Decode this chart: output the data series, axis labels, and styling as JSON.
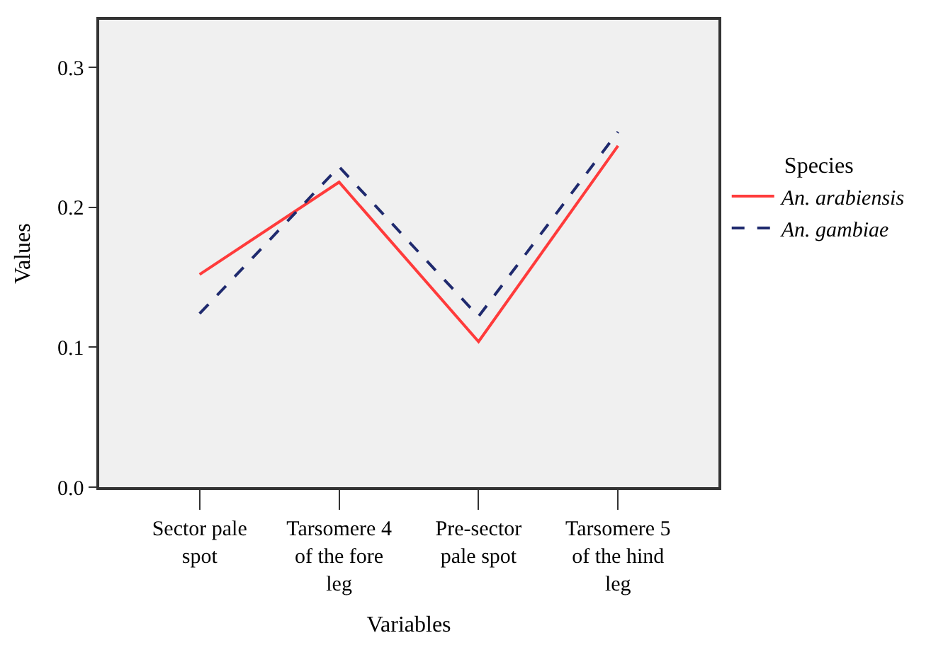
{
  "chart_data": {
    "type": "line",
    "xlabel": "Variables",
    "ylabel": "Values",
    "legend_title": "Species",
    "categories": [
      "Sector pale spot",
      "Tarsomere 4 of the fore leg",
      "Pre-sector pale spot",
      "Tarsomere 5 of the hind leg"
    ],
    "series": [
      {
        "name": "An. arabiensis",
        "color": "#ff3b3b",
        "line_style": "solid",
        "values": [
          0.152,
          0.218,
          0.104,
          0.244
        ]
      },
      {
        "name": "An. gambiae",
        "color": "#1f2a6e",
        "line_style": "dashed",
        "values": [
          0.124,
          0.229,
          0.122,
          0.254
        ]
      }
    ],
    "ylim": [
      0,
      0.334
    ],
    "yticks": [
      {
        "value": 0,
        "label": "0.0"
      },
      0.1,
      0.2,
      0.3
    ],
    "grid": false,
    "legend": "right",
    "marker": "none"
  }
}
